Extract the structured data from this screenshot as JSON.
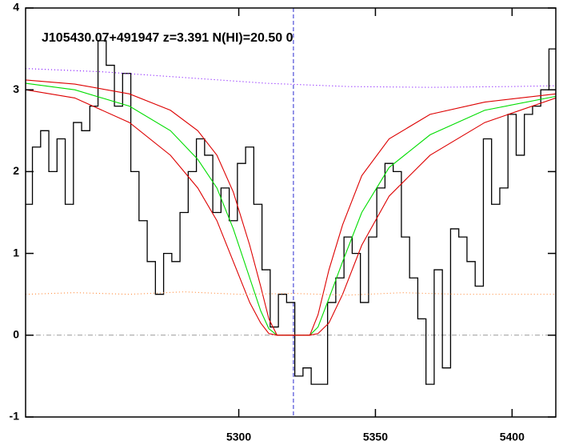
{
  "chart_data": {
    "type": "line",
    "title": "J105430.07+491947 z=3.391 N(HI)=20.50 0",
    "xlim": [
      5222,
      5416
    ],
    "ylim": [
      -1,
      4
    ],
    "xticks": [
      5300,
      5350,
      5400
    ],
    "yticks": [
      -1,
      0,
      1,
      2,
      3,
      4
    ],
    "grid": false,
    "reference_lines": [
      {
        "axis": "y",
        "value": 0,
        "color": "#999999",
        "style": "dashdot"
      },
      {
        "axis": "x",
        "value": 5320,
        "color": "#2a2ad0",
        "style": "dashed"
      }
    ],
    "series": [
      {
        "color": "#000000",
        "drawstyle": "steps",
        "x": [
          5223,
          5226,
          5229,
          5232,
          5235,
          5238,
          5241,
          5244,
          5247,
          5250,
          5253,
          5256,
          5259,
          5262,
          5265,
          5268,
          5271,
          5274,
          5277,
          5280,
          5283,
          5286,
          5289,
          5292,
          5295,
          5298,
          5301,
          5304,
          5307,
          5310,
          5313,
          5316,
          5319,
          5322,
          5325,
          5328,
          5331,
          5334,
          5337,
          5340,
          5343,
          5346,
          5349,
          5352,
          5355,
          5358,
          5361,
          5364,
          5367,
          5370,
          5373,
          5376,
          5379,
          5382,
          5385,
          5388,
          5391,
          5394,
          5397,
          5400,
          5403,
          5406,
          5409,
          5412,
          5415
        ],
        "values": [
          1.6,
          2.3,
          2.5,
          2.0,
          2.4,
          1.6,
          2.6,
          2.5,
          2.8,
          3.6,
          3.3,
          2.8,
          3.2,
          2.0,
          1.4,
          0.9,
          0.5,
          1.0,
          0.9,
          1.5,
          2.0,
          2.4,
          2.2,
          1.5,
          1.8,
          1.4,
          2.1,
          2.3,
          1.6,
          0.8,
          0.1,
          0.5,
          0.4,
          -0.5,
          -0.4,
          -0.6,
          -0.6,
          0.4,
          0.7,
          1.2,
          1.0,
          0.4,
          1.2,
          1.8,
          2.1,
          2.0,
          1.2,
          0.7,
          0.2,
          -0.6,
          0.8,
          -0.4,
          1.3,
          1.2,
          0.9,
          0.6,
          2.4,
          1.6,
          1.8,
          2.7,
          2.2,
          2.7,
          2.8,
          3.0,
          3.5
        ]
      },
      {
        "color": "#00dd00",
        "drawstyle": "smooth",
        "x": [
          5222,
          5240,
          5260,
          5275,
          5285,
          5292,
          5298,
          5304,
          5308,
          5311,
          5314,
          5326,
          5329,
          5333,
          5338,
          5345,
          5355,
          5370,
          5390,
          5416
        ],
        "values": [
          3.08,
          3.0,
          2.8,
          2.5,
          2.15,
          1.8,
          1.3,
          0.7,
          0.3,
          0.08,
          0,
          0,
          0.1,
          0.45,
          0.9,
          1.5,
          2.05,
          2.45,
          2.75,
          2.92
        ]
      },
      {
        "color": "#dd0000",
        "drawstyle": "smooth",
        "x": [
          5222,
          5240,
          5260,
          5275,
          5285,
          5292,
          5298,
          5304,
          5308,
          5311,
          5314,
          5326,
          5329,
          5333,
          5338,
          5345,
          5355,
          5370,
          5390,
          5416
        ],
        "values": [
          3.12,
          3.07,
          2.95,
          2.75,
          2.5,
          2.2,
          1.75,
          1.1,
          0.6,
          0.2,
          0,
          0,
          0.25,
          0.8,
          1.35,
          1.95,
          2.4,
          2.7,
          2.85,
          2.95
        ]
      },
      {
        "color": "#dd0000",
        "drawstyle": "smooth",
        "x": [
          5222,
          5240,
          5260,
          5275,
          5285,
          5292,
          5298,
          5304,
          5308,
          5311,
          5314,
          5326,
          5329,
          5333,
          5338,
          5345,
          5355,
          5370,
          5390,
          5416
        ],
        "values": [
          3.0,
          2.9,
          2.6,
          2.2,
          1.8,
          1.4,
          0.9,
          0.4,
          0.15,
          0.02,
          0,
          0,
          0.02,
          0.15,
          0.5,
          1.1,
          1.7,
          2.2,
          2.6,
          2.9
        ]
      },
      {
        "color": "#7a00ff",
        "drawstyle": "dotted",
        "x": [
          5222,
          5250,
          5280,
          5310,
          5340,
          5370,
          5400,
          5416
        ],
        "values": [
          3.26,
          3.22,
          3.15,
          3.08,
          3.04,
          3.03,
          3.04,
          3.05
        ]
      },
      {
        "color": "#ff8a3a",
        "drawstyle": "dotted",
        "x": [
          5222,
          5240,
          5260,
          5280,
          5300,
          5320,
          5340,
          5360,
          5380,
          5400,
          5416
        ],
        "values": [
          0.5,
          0.52,
          0.5,
          0.53,
          0.5,
          0.51,
          0.49,
          0.52,
          0.5,
          0.5,
          0.5
        ]
      }
    ]
  }
}
